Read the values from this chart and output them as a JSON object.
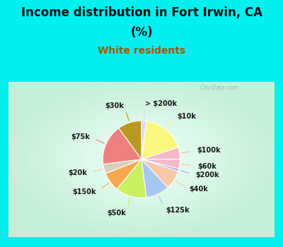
{
  "title_line1": "Income distribution in Fort Irwin, CA",
  "title_line2": "(%)",
  "subtitle": "White residents",
  "labels": [
    "> $200k",
    "$10k",
    "$100k",
    "$60k",
    "$200k",
    "$40k",
    "$125k",
    "$50k",
    "$150k",
    "$20k",
    "$75k",
    "$30k"
  ],
  "sizes": [
    2,
    18,
    5,
    4,
    1,
    8,
    10,
    13,
    8,
    4,
    17,
    10
  ],
  "colors": [
    "#d8d8f0",
    "#f8f880",
    "#f5b8c8",
    "#f5b8c8",
    "#a0a0e8",
    "#f5c8a8",
    "#a8c8f0",
    "#c8f060",
    "#f5a850",
    "#d8d0b8",
    "#f08080",
    "#b89820"
  ],
  "bg_cyan": "#00f0f0",
  "bg_chart_gradient_center": "#f0fff8",
  "bg_chart_gradient_edge": "#c8f0d8",
  "title_color": "#101010",
  "subtitle_color": "#b05000",
  "watermark": "City-Data.com",
  "label_fontsize": 7,
  "title_fontsize": 12,
  "subtitle_fontsize": 10
}
